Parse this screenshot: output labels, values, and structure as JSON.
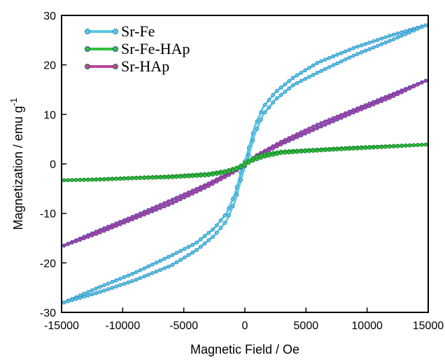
{
  "chart_data": {
    "type": "line",
    "xlabel": "Magnetic Field / Oe",
    "ylabel": "Magnetization / emu g",
    "ylabel_superscript": "-1",
    "xlim": [
      -15000,
      15000
    ],
    "ylim": [
      -30,
      30
    ],
    "x_ticks": [
      -15000,
      -10000,
      -5000,
      0,
      5000,
      10000,
      15000
    ],
    "x_tick_labels": [
      "-15000",
      "-10000",
      "-5000",
      "0",
      "5000",
      "10000",
      "15000"
    ],
    "y_ticks": [
      -30,
      -20,
      -10,
      0,
      10,
      20,
      30
    ],
    "y_tick_labels": [
      "-30",
      "-20",
      "-10",
      "0",
      "10",
      "20",
      "30"
    ],
    "grid": false,
    "legend_position": "top-left",
    "legend": [
      {
        "label": "Sr-Fe",
        "color": "#5bc8e8"
      },
      {
        "label": "Sr-Fe-HAp",
        "color": "#2fbf3f"
      },
      {
        "label": "Sr-HAp",
        "color": "#b8479b"
      }
    ],
    "series": [
      {
        "name": "Sr-Fe",
        "color": "#5bc8e8",
        "marker_edge": "#2a7fb8",
        "upper_branch": {
          "x": [
            -14800,
            -12000,
            -9000,
            -6000,
            -4000,
            -2500,
            -1500,
            -800,
            -300,
            0,
            300,
            800,
            1500,
            2500,
            4000,
            6000,
            9000,
            12000,
            14800
          ],
          "y": [
            -28,
            -25,
            -22,
            -18.5,
            -16,
            -13,
            -10,
            -6,
            -1.5,
            0.5,
            3,
            7.5,
            11.5,
            14.5,
            17.5,
            20.5,
            23.5,
            26,
            28
          ]
        },
        "lower_branch": {
          "x": [
            -14800,
            -12000,
            -9000,
            -6000,
            -4000,
            -2500,
            -1500,
            -800,
            -300,
            0,
            300,
            800,
            1500,
            2500,
            4000,
            6000,
            9000,
            12000,
            14800
          ],
          "y": [
            -28,
            -26,
            -23.5,
            -20.5,
            -17.5,
            -14.5,
            -11.5,
            -7.5,
            -3,
            -0.5,
            1.5,
            6,
            10,
            13,
            16,
            18.5,
            22,
            25,
            28
          ]
        }
      },
      {
        "name": "Sr-Fe-HAp",
        "color": "#2fbf3f",
        "marker_edge": "#1a7a2a",
        "upper_branch": {
          "x": [
            -14800,
            -12000,
            -9000,
            -6000,
            -3000,
            -1500,
            -500,
            0,
            500,
            1500,
            3000,
            6000,
            9000,
            12000,
            14800
          ],
          "y": [
            -3.3,
            -3.1,
            -2.8,
            -2.5,
            -2.0,
            -1.4,
            -0.6,
            0.2,
            1.0,
            1.9,
            2.5,
            2.9,
            3.3,
            3.6,
            3.9
          ]
        },
        "lower_branch": {
          "x": [
            -14800,
            -12000,
            -9000,
            -6000,
            -3000,
            -1500,
            -500,
            0,
            500,
            1500,
            3000,
            6000,
            9000,
            12000,
            14800
          ],
          "y": [
            -3.3,
            -3.2,
            -2.9,
            -2.7,
            -2.3,
            -1.7,
            -0.9,
            -0.2,
            0.5,
            1.4,
            2.2,
            2.7,
            3.1,
            3.5,
            3.9
          ]
        }
      },
      {
        "name": "Sr-HAp",
        "color": "#b8479b",
        "marker_edge": "#3b3fb8",
        "upper_branch": {
          "x": [
            -14800,
            -12000,
            -9000,
            -6000,
            -3000,
            -1000,
            0,
            1000,
            3000,
            6000,
            9000,
            12000,
            14800
          ],
          "y": [
            -16.5,
            -13.5,
            -10.5,
            -7.3,
            -4.0,
            -1.5,
            0,
            1.8,
            4.5,
            8.0,
            11.0,
            14.0,
            16.8
          ]
        },
        "lower_branch": {
          "x": [
            -14800,
            -12000,
            -9000,
            -6000,
            -3000,
            -1000,
            0,
            1000,
            3000,
            6000,
            9000,
            12000,
            14800
          ],
          "y": [
            -16.5,
            -14.0,
            -11.0,
            -8.0,
            -4.5,
            -1.8,
            -0.3,
            1.5,
            4.0,
            7.3,
            10.5,
            13.5,
            16.8
          ]
        }
      }
    ]
  }
}
